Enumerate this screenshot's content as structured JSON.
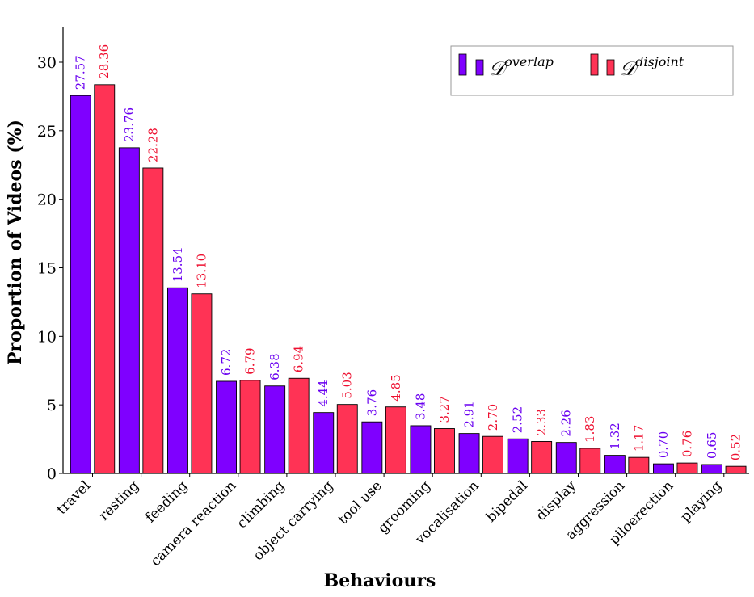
{
  "chart_data": {
    "type": "bar",
    "xlabel": "Behaviours",
    "ylabel": "Proportion of Videos (%)",
    "ylim": [
      0,
      32.5
    ],
    "yticks": [
      0,
      5,
      10,
      15,
      20,
      25,
      30
    ],
    "grid": false,
    "legend_position": "top-right",
    "categories": [
      "travel",
      "resting",
      "feeding",
      "camera reaction",
      "climbing",
      "object carrying",
      "tool use",
      "grooming",
      "vocalisation",
      "bipedal",
      "display",
      "aggression",
      "piloerection",
      "playing"
    ],
    "series": [
      {
        "name_main": "𝒟",
        "name_sup": "overlap",
        "color": "#7f00ff",
        "label_color": "#6a00f0",
        "values": [
          27.57,
          23.76,
          13.54,
          6.72,
          6.38,
          4.44,
          3.76,
          3.48,
          2.91,
          2.52,
          2.26,
          1.32,
          0.7,
          0.65
        ],
        "labels": [
          "27.57",
          "23.76",
          "13.54",
          "6.72",
          "6.38",
          "4.44",
          "3.76",
          "3.48",
          "2.91",
          "2.52",
          "2.26",
          "1.32",
          "0.70",
          "0.65"
        ]
      },
      {
        "name_main": "𝒟",
        "name_sup": "disjoint",
        "color": "#ff3355",
        "label_color": "#ee1030",
        "values": [
          28.36,
          22.28,
          13.1,
          6.79,
          6.94,
          5.03,
          4.85,
          3.27,
          2.7,
          2.33,
          1.83,
          1.17,
          0.76,
          0.52
        ],
        "labels": [
          "28.36",
          "22.28",
          "13.10",
          "6.79",
          "6.94",
          "5.03",
          "4.85",
          "3.27",
          "2.70",
          "2.33",
          "1.83",
          "1.17",
          "0.76",
          "0.52"
        ]
      }
    ]
  }
}
